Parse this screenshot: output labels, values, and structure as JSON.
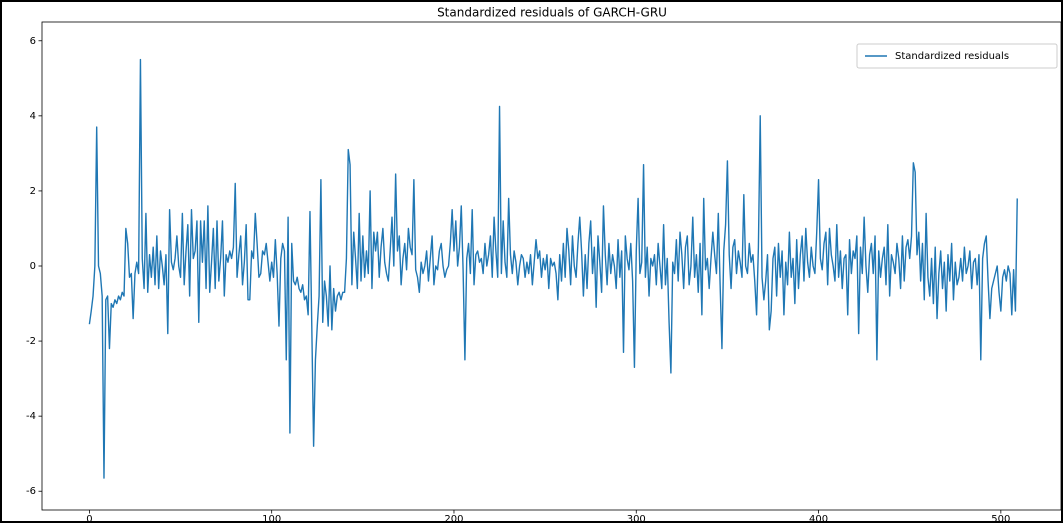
{
  "chart_data": {
    "type": "line",
    "title": "Standardized residuals of GARCH-GRU",
    "legend": "upper right",
    "xlim": [
      -26,
      533
    ],
    "ylim": [
      -6.5,
      6.5
    ],
    "xticks": [
      0,
      100,
      200,
      300,
      400,
      500
    ],
    "yticks": [
      -6,
      -4,
      -2,
      0,
      2,
      4,
      6
    ],
    "x": [
      0,
      1,
      2,
      3,
      4,
      5,
      6,
      7,
      8,
      9,
      10,
      11,
      12,
      13,
      14,
      15,
      16,
      17,
      18,
      19,
      20,
      21,
      22,
      23,
      24,
      25,
      26,
      27,
      28,
      29,
      30,
      31,
      32,
      33,
      34,
      35,
      36,
      37,
      38,
      39,
      40,
      41,
      42,
      43,
      44,
      45,
      46,
      47,
      48,
      49,
      50,
      51,
      52,
      53,
      54,
      55,
      56,
      57,
      58,
      59,
      60,
      61,
      62,
      63,
      64,
      65,
      66,
      67,
      68,
      69,
      70,
      71,
      72,
      73,
      74,
      75,
      76,
      77,
      78,
      79,
      80,
      81,
      82,
      83,
      84,
      85,
      86,
      87,
      88,
      89,
      90,
      91,
      92,
      93,
      94,
      95,
      96,
      97,
      98,
      99,
      100,
      101,
      102,
      103,
      104,
      105,
      106,
      107,
      108,
      109,
      110,
      111,
      112,
      113,
      114,
      115,
      116,
      117,
      118,
      119,
      120,
      121,
      122,
      123,
      124,
      125,
      126,
      127,
      128,
      129,
      130,
      131,
      132,
      133,
      134,
      135,
      136,
      137,
      138,
      139,
      140,
      141,
      142,
      143,
      144,
      145,
      146,
      147,
      148,
      149,
      150,
      151,
      152,
      153,
      154,
      155,
      156,
      157,
      158,
      159,
      160,
      161,
      162,
      163,
      164,
      165,
      166,
      167,
      168,
      169,
      170,
      171,
      172,
      173,
      174,
      175,
      176,
      177,
      178,
      179,
      180,
      181,
      182,
      183,
      184,
      185,
      186,
      187,
      188,
      189,
      190,
      191,
      192,
      193,
      194,
      195,
      196,
      197,
      198,
      199,
      200,
      201,
      202,
      203,
      204,
      205,
      206,
      207,
      208,
      209,
      210,
      211,
      212,
      213,
      214,
      215,
      216,
      217,
      218,
      219,
      220,
      221,
      222,
      223,
      224,
      225,
      226,
      227,
      228,
      229,
      230,
      231,
      232,
      233,
      234,
      235,
      236,
      237,
      238,
      239,
      240,
      241,
      242,
      243,
      244,
      245,
      246,
      247,
      248,
      249,
      250,
      251,
      252,
      253,
      254,
      255,
      256,
      257,
      258,
      259,
      260,
      261,
      262,
      263,
      264,
      265,
      266,
      267,
      268,
      269,
      270,
      271,
      272,
      273,
      274,
      275,
      276,
      277,
      278,
      279,
      280,
      281,
      282,
      283,
      284,
      285,
      286,
      287,
      288,
      289,
      290,
      291,
      292,
      293,
      294,
      295,
      296,
      297,
      298,
      299,
      300,
      301,
      302,
      303,
      304,
      305,
      306,
      307,
      308,
      309,
      310,
      311,
      312,
      313,
      314,
      315,
      316,
      317,
      318,
      319,
      320,
      321,
      322,
      323,
      324,
      325,
      326,
      327,
      328,
      329,
      330,
      331,
      332,
      333,
      334,
      335,
      336,
      337,
      338,
      339,
      340,
      341,
      342,
      343,
      344,
      345,
      346,
      347,
      348,
      349,
      350,
      351,
      352,
      353,
      354,
      355,
      356,
      357,
      358,
      359,
      360,
      361,
      362,
      363,
      364,
      365,
      366,
      367,
      368,
      369,
      370,
      371,
      372,
      373,
      374,
      375,
      376,
      377,
      378,
      379,
      380,
      381,
      382,
      383,
      384,
      385,
      386,
      387,
      388,
      389,
      390,
      391,
      392,
      393,
      394,
      395,
      396,
      397,
      398,
      399,
      400,
      401,
      402,
      403,
      404,
      405,
      406,
      407,
      408,
      409,
      410,
      411,
      412,
      413,
      414,
      415,
      416,
      417,
      418,
      419,
      420,
      421,
      422,
      423,
      424,
      425,
      426,
      427,
      428,
      429,
      430,
      431,
      432,
      433,
      434,
      435,
      436,
      437,
      438,
      439,
      440,
      441,
      442,
      443,
      444,
      445,
      446,
      447,
      448,
      449,
      450,
      451,
      452,
      453,
      454,
      455,
      456,
      457,
      458,
      459,
      460,
      461,
      462,
      463,
      464,
      465,
      466,
      467,
      468,
      469,
      470,
      471,
      472,
      473,
      474,
      475,
      476,
      477,
      478,
      479,
      480,
      481,
      482,
      483,
      484,
      485,
      486,
      487,
      488,
      489,
      490,
      491,
      492,
      493,
      494,
      495,
      496,
      497,
      498,
      499,
      500,
      501,
      502,
      503,
      504,
      505,
      506,
      507,
      508,
      509
    ],
    "series": [
      {
        "name": "Standardized residuals",
        "color": "#1f77b4",
        "values": [
          -1.55,
          -1.2,
          -0.8,
          0.0,
          3.7,
          0.0,
          -0.2,
          -0.8,
          -5.65,
          -0.9,
          -0.8,
          -2.2,
          -1.0,
          -1.1,
          -0.9,
          -1.0,
          -0.8,
          -0.9,
          -0.7,
          -0.8,
          1.0,
          0.6,
          -0.3,
          -0.2,
          -1.4,
          -0.2,
          0.1,
          -0.2,
          5.5,
          0.2,
          -0.6,
          1.4,
          -0.7,
          0.3,
          -0.3,
          0.5,
          -0.5,
          0.8,
          -0.6,
          0.4,
          0.0,
          -0.5,
          0.3,
          -1.8,
          1.5,
          0.1,
          -0.1,
          0.2,
          0.8,
          0.0,
          -0.3,
          1.4,
          -0.5,
          0.4,
          1.1,
          -0.8,
          1.5,
          0.2,
          0.4,
          1.2,
          -1.5,
          1.2,
          0.1,
          1.2,
          -0.6,
          1.6,
          -0.7,
          0.1,
          1.0,
          -0.6,
          1.2,
          -0.4,
          0.2,
          1.2,
          -0.8,
          0.3,
          0.1,
          0.4,
          0.2,
          0.5,
          2.2,
          -0.3,
          0.3,
          0.8,
          -0.5,
          0.1,
          1.1,
          -0.9,
          -0.9,
          0.4,
          0.2,
          1.4,
          0.6,
          -0.3,
          -0.2,
          0.4,
          0.3,
          0.6,
          0.1,
          -0.4,
          0.1,
          -0.3,
          0.7,
          -0.2,
          -1.6,
          0.2,
          0.6,
          0.4,
          -2.5,
          1.3,
          -4.45,
          0.6,
          -0.4,
          -0.5,
          -0.3,
          -0.6,
          -0.7,
          -0.5,
          -0.9,
          -0.8,
          -1.3,
          1.45,
          -1.6,
          -4.8,
          -2.5,
          -1.6,
          -0.8,
          2.3,
          -1.5,
          -0.4,
          -0.8,
          -1.6,
          0.0,
          -1.7,
          -0.6,
          -1.2,
          -0.8,
          -0.7,
          -0.9,
          -0.7,
          -0.7,
          0.2,
          3.1,
          2.7,
          -0.5,
          0.9,
          0.2,
          -0.6,
          1.4,
          -0.4,
          0.8,
          -0.3,
          0.4,
          -0.2,
          2.0,
          -0.6,
          0.9,
          0.4,
          0.9,
          -0.3,
          0.5,
          1.0,
          0.1,
          -0.2,
          -0.4,
          0.4,
          1.3,
          0.0,
          2.45,
          0.4,
          0.8,
          -0.5,
          0.2,
          0.6,
          -0.1,
          1.0,
          0.5,
          0.3,
          2.3,
          -0.1,
          -0.3,
          -0.7,
          0.1,
          -0.2,
          0.0,
          0.4,
          -0.4,
          0.2,
          0.8,
          -0.5,
          0.0,
          -0.1,
          0.4,
          0.6,
          0.0,
          -0.3,
          -0.1,
          0.0,
          0.6,
          1.5,
          0.4,
          1.2,
          0.0,
          0.5,
          1.6,
          -0.1,
          -2.5,
          0.2,
          0.6,
          -0.2,
          1.5,
          -0.5,
          0.3,
          0.4,
          0.1,
          0.2,
          -0.2,
          0.6,
          0.0,
          0.3,
          0.8,
          -0.3,
          1.3,
          0.4,
          -0.3,
          4.25,
          -0.2,
          1.2,
          0.1,
          -0.3,
          1.8,
          0.3,
          -0.2,
          0.4,
          0.1,
          -0.5,
          0.0,
          0.3,
          0.2,
          -0.3,
          0.1,
          -0.2,
          0.3,
          -0.5,
          0.1,
          0.7,
          0.2,
          0.4,
          -0.3,
          0.2,
          -0.1,
          0.3,
          -0.6,
          0.2,
          0.0,
          0.1,
          -0.2,
          -0.9,
          0.3,
          -0.4,
          0.6,
          -0.3,
          1.0,
          0.4,
          -0.5,
          0.8,
          0.0,
          -0.3,
          0.6,
          1.3,
          0.4,
          -0.8,
          0.3,
          -0.6,
          0.6,
          1.2,
          -0.2,
          0.5,
          -1.1,
          0.8,
          0.1,
          -0.7,
          1.6,
          0.3,
          -0.5,
          0.6,
          -0.2,
          0.3,
          0.0,
          -0.6,
          0.7,
          -0.3,
          0.4,
          -2.3,
          0.8,
          0.2,
          -0.1,
          0.6,
          -0.4,
          -2.7,
          0.4,
          1.8,
          -0.2,
          0.1,
          2.7,
          -0.3,
          0.5,
          -0.8,
          0.2,
          0.0,
          0.3,
          -0.5,
          0.6,
          0.0,
          -0.6,
          1.1,
          -0.5,
          0.2,
          -1.5,
          -2.85,
          0.1,
          -0.2,
          0.7,
          -0.4,
          0.9,
          0.3,
          -0.6,
          0.5,
          0.8,
          -0.5,
          0.0,
          1.3,
          -0.3,
          0.3,
          -0.7,
          0.6,
          -1.3,
          1.8,
          -0.1,
          0.2,
          -0.6,
          0.2,
          0.9,
          0.3,
          -0.2,
          1.4,
          -0.5,
          -2.2,
          0.4,
          1.1,
          2.8,
          0.3,
          -0.6,
          0.5,
          0.7,
          -0.2,
          0.4,
          0.1,
          -0.3,
          1.9,
          0.0,
          -0.2,
          0.6,
          0.1,
          0.3,
          -0.4,
          -1.3,
          0.5,
          4.0,
          -0.3,
          -0.9,
          -0.4,
          0.3,
          -1.7,
          -1.2,
          0.2,
          0.5,
          -0.8,
          0.6,
          -0.3,
          0.4,
          -1.3,
          0.1,
          -0.5,
          0.9,
          -0.3,
          0.2,
          -1.0,
          0.7,
          -0.6,
          0.3,
          0.8,
          -0.4,
          1.0,
          0.1,
          -0.3,
          0.5,
          0.0,
          -0.2,
          0.9,
          2.3,
          0.2,
          -0.1,
          0.6,
          0.9,
          -0.5,
          1.0,
          0.3,
          0.0,
          -0.4,
          1.1,
          -0.3,
          0.4,
          -0.6,
          0.2,
          0.3,
          -1.3,
          0.7,
          -0.2,
          0.4,
          0.2,
          0.8,
          -1.8,
          0.5,
          -0.2,
          1.3,
          0.0,
          -0.7,
          0.3,
          0.6,
          -0.2,
          0.8,
          -2.5,
          0.4,
          -0.3,
          0.2,
          0.5,
          -0.5,
          1.1,
          -0.8,
          0.3,
          0.1,
          -0.2,
          0.6,
          0.2,
          -0.6,
          0.8,
          -0.4,
          0.5,
          0.7,
          0.2,
          0.8,
          2.75,
          2.5,
          0.3,
          0.9,
          -0.4,
          0.6,
          -0.9,
          1.4,
          -0.3,
          -0.8,
          0.2,
          -1.0,
          0.5,
          -1.4,
          -0.2,
          0.4,
          -0.6,
          0.1,
          -1.2,
          0.3,
          -0.4,
          0.6,
          -0.9,
          0.1,
          -0.5,
          -0.3,
          0.2,
          -0.4,
          0.5,
          -0.2,
          0.0,
          0.4,
          -0.6,
          0.1,
          0.2,
          -0.5,
          0.3,
          -2.5,
          0.2,
          0.6,
          0.8,
          -0.4,
          -1.4,
          -0.6,
          -0.4,
          -0.2,
          0.0,
          -0.7,
          -1.2,
          -0.3,
          -0.1,
          -0.4,
          0.0,
          -0.2,
          -1.3,
          -0.1,
          -1.2,
          1.8
        ]
      }
    ]
  }
}
